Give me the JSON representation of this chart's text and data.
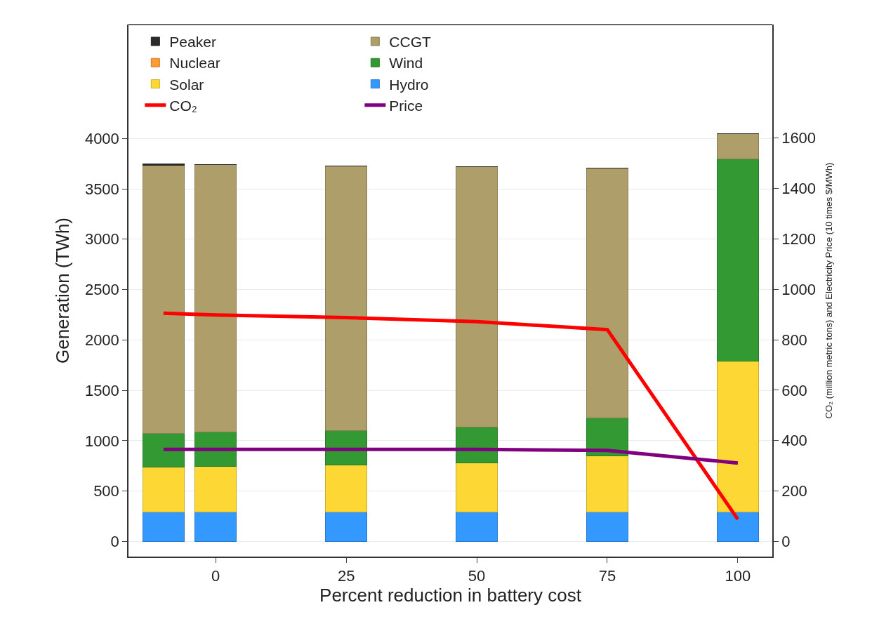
{
  "chart_data": {
    "type": "bar",
    "stacked": true,
    "xlabel": "Percent reduction in battery cost",
    "ylabel": "Generation (TWh)",
    "y2label": "CO₂ (million metric tons) and Electricity Price (10 times $/MWh)",
    "x": [
      -10,
      0,
      25,
      50,
      75,
      100
    ],
    "xlim": [
      -16.7,
      106.6
    ],
    "xticks": [
      0,
      25,
      50,
      75,
      100
    ],
    "ylim": [
      -150,
      5130
    ],
    "yticks": [
      0,
      500,
      1000,
      1500,
      2000,
      2500,
      3000,
      3500,
      4000
    ],
    "y2lim": [
      -60,
      2050
    ],
    "y2ticks": [
      0,
      200,
      400,
      600,
      800,
      1000,
      1200,
      1400,
      1600
    ],
    "grid": "y",
    "legend": "top",
    "series": [
      {
        "name": "Hydro",
        "color": "#3399ff",
        "values": [
          290,
          290,
          290,
          290,
          290,
          290
        ]
      },
      {
        "name": "Solar",
        "color": "#fdd835",
        "values": [
          445,
          456,
          466,
          493,
          562,
          1497
        ]
      },
      {
        "name": "Wind",
        "color": "#339933",
        "values": [
          335,
          341,
          347,
          353,
          371,
          2012
        ]
      },
      {
        "name": "Nuclear",
        "color": "#ff9933",
        "values": [
          0,
          0,
          0,
          0,
          0,
          0
        ]
      },
      {
        "name": "CCGT",
        "color": "#ae9e6a",
        "values": [
          2665,
          2650,
          2626,
          2582,
          2485,
          250
        ]
      },
      {
        "name": "Peaker",
        "color": "#2b2b2b",
        "values": [
          10,
          5,
          0,
          0,
          0,
          0
        ]
      },
      {
        "name": "CO₂",
        "type": "line",
        "axis": "y2",
        "color": "#ff0000",
        "values": [
          905,
          898,
          888,
          872,
          840,
          88
        ]
      },
      {
        "name": "Price",
        "type": "line",
        "axis": "y2",
        "color": "#800080",
        "values": [
          365,
          365,
          365,
          365,
          361,
          311
        ]
      }
    ]
  }
}
